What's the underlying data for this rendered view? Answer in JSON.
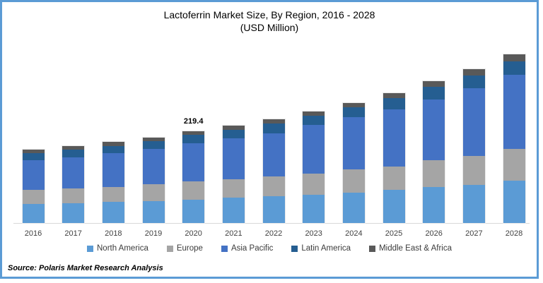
{
  "frame": {
    "border_color": "#5B9BD5",
    "background": "#ffffff"
  },
  "title": {
    "line1": "Lactoferrin Market Size, By Region, 2016 - 2028",
    "line2": "(USD Million)"
  },
  "source": "Source: Polaris Market Research Analysis",
  "chart_data": {
    "type": "bar",
    "stacked": true,
    "title": "Lactoferrin Market Size, By Region, 2016 - 2028 (USD Million)",
    "xlabel": "",
    "ylabel": "",
    "grid": false,
    "y_axis_visible": false,
    "legend_position": "bottom",
    "ylim": [
      0,
      420
    ],
    "units": "USD Million",
    "categories": [
      "2016",
      "2017",
      "2018",
      "2019",
      "2020",
      "2021",
      "2022",
      "2023",
      "2024",
      "2025",
      "2026",
      "2027",
      "2028"
    ],
    "series": [
      {
        "name": "North America",
        "color": "#5B9BD5",
        "values": [
          45,
          48,
          51,
          52,
          55,
          60,
          64,
          67,
          73,
          79,
          86,
          92,
          101
        ]
      },
      {
        "name": "Europe",
        "color": "#A5A5A5",
        "values": [
          35,
          35,
          35,
          41,
          44,
          44,
          47,
          51,
          55,
          56,
          64,
          69,
          76
        ]
      },
      {
        "name": "Asia Pacific",
        "color": "#4472C4",
        "values": [
          70,
          75,
          81,
          84,
          91.4,
          99,
          104,
          117,
          125,
          136,
          146,
          161,
          177
        ]
      },
      {
        "name": "Latin America",
        "color": "#255E91",
        "values": [
          17,
          17,
          17,
          18,
          20,
          19,
          23,
          21,
          23,
          27,
          29,
          31,
          32
        ]
      },
      {
        "name": "Middle East & Africa",
        "color": "#595959",
        "values": [
          9,
          10,
          10,
          10,
          9,
          11,
          10,
          11,
          11,
          12,
          14,
          15,
          17
        ]
      }
    ],
    "totals": [
      176,
      185,
      194,
      205,
      219.4,
      233,
      248,
      267,
      287,
      310,
      339,
      368,
      403
    ],
    "annotations": [
      {
        "category": "2020",
        "label": "219.4"
      }
    ]
  }
}
